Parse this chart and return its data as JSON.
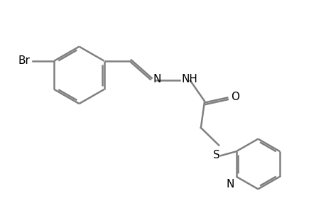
{
  "bg_color": "#ffffff",
  "line_color": "#808080",
  "text_color": "#000000",
  "bond_lw": 1.8,
  "dbo": 0.055,
  "figsize": [
    4.6,
    3.0
  ],
  "dpi": 100,
  "xlim": [
    0,
    9.2
  ],
  "ylim": [
    0,
    6.0
  ]
}
